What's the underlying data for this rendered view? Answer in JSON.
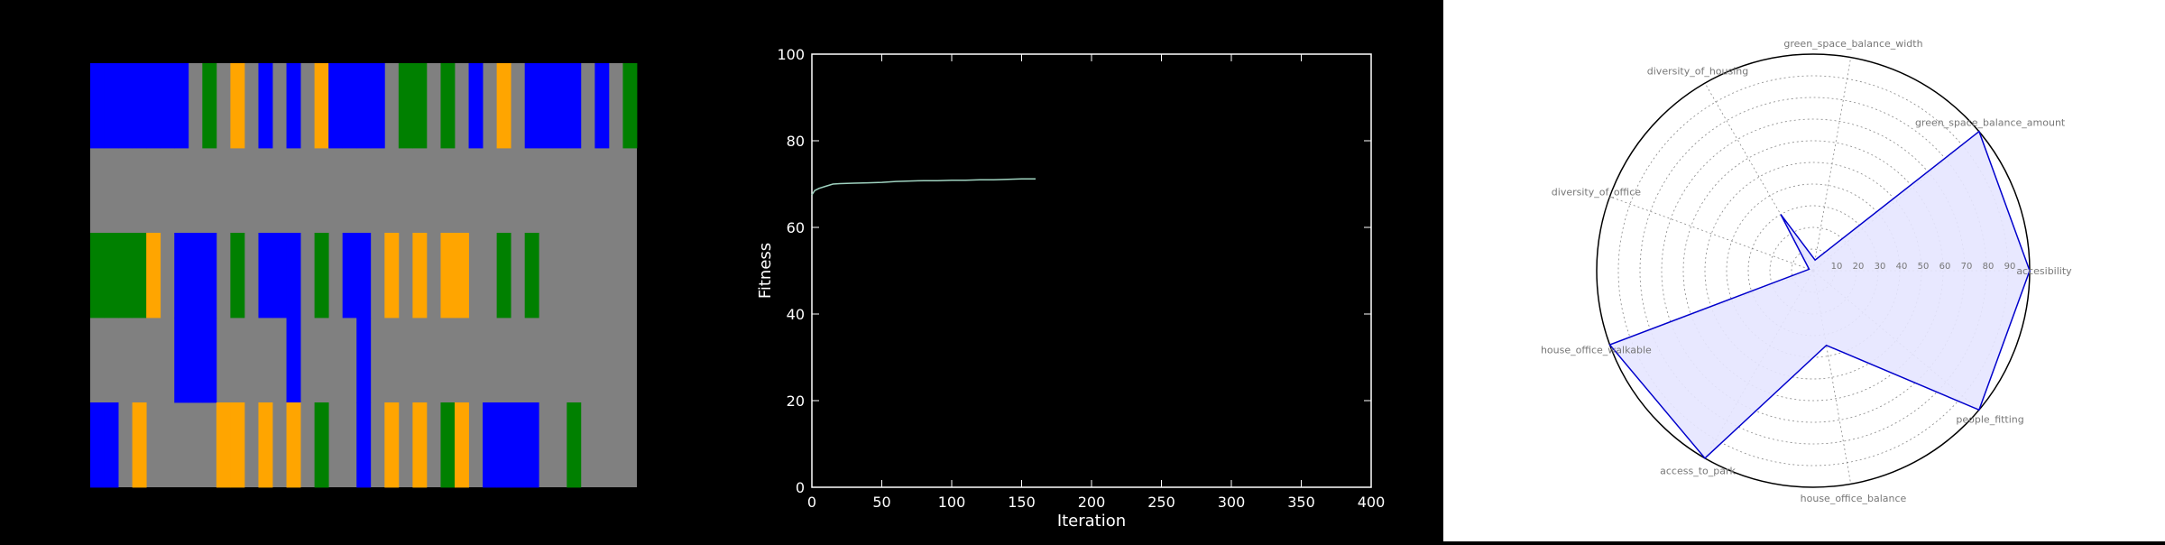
{
  "colors": {
    "road": "#808080",
    "green": "#008000",
    "blue": "#0000ff",
    "orange": "#ffa500",
    "line": "#9fd3c0",
    "radar_line": "#0000cc",
    "radar_fill": "#e6e6ff"
  },
  "chart_data": [
    {
      "type": "heatmap",
      "legend": {
        "0": "road",
        "1": "green",
        "2": "blue",
        "3": "orange"
      },
      "grid": [
        "222222201030202032222011010203022220201",
        "000000000000000000000000000000000000000",
        "111130222010222010220303033001010000000",
        "000000222000002000020000000000000000000",
        "220300000330303010020303013022220010000"
      ]
    },
    {
      "type": "line",
      "xlabel": "Iteration",
      "ylabel": "Fitness",
      "xlim": [
        0,
        400
      ],
      "ylim": [
        0,
        100
      ],
      "xticks": [
        0,
        50,
        100,
        150,
        200,
        250,
        300,
        350,
        400
      ],
      "yticks": [
        0,
        20,
        40,
        60,
        80,
        100
      ],
      "x": [
        0,
        2,
        5,
        10,
        15,
        20,
        30,
        40,
        50,
        60,
        70,
        80,
        90,
        100,
        110,
        120,
        130,
        140,
        150,
        160
      ],
      "y": [
        67.5,
        68.5,
        69.0,
        69.5,
        70.0,
        70.1,
        70.2,
        70.3,
        70.4,
        70.6,
        70.7,
        70.8,
        70.8,
        70.9,
        70.9,
        71.0,
        71.0,
        71.1,
        71.2,
        71.2
      ]
    },
    {
      "type": "radar",
      "rlim": [
        0,
        100
      ],
      "rticks": [
        "10",
        "20",
        "30",
        "40",
        "50",
        "60",
        "70",
        "80",
        "90"
      ],
      "categories": [
        "accesibility",
        "green_space_balance_amount",
        "green_space_balance_width",
        "diversity_of_housing",
        "diversity_of_office",
        "house_office_walkable",
        "access_to_park",
        "house_office_balance",
        "people_fitting"
      ],
      "values": [
        100,
        100,
        5,
        30,
        2,
        100,
        100,
        35,
        100
      ]
    }
  ]
}
